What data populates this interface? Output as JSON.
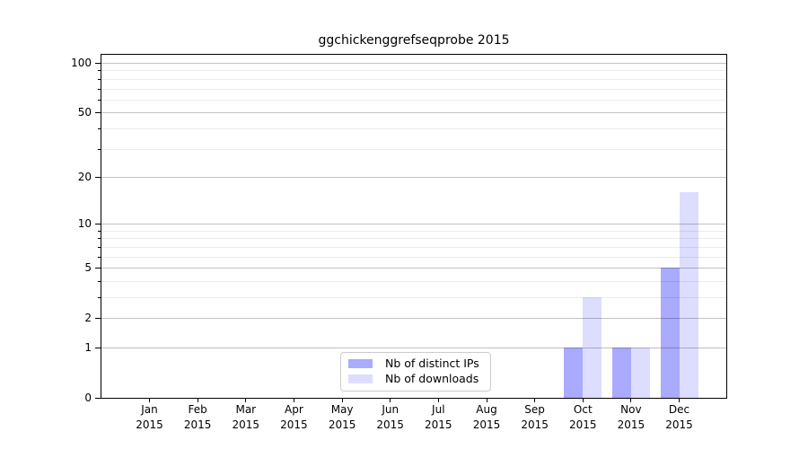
{
  "chart_data": {
    "type": "bar",
    "title": "ggchickenggrefseqprobe 2015",
    "year": "2015",
    "categories": [
      "Jan",
      "Feb",
      "Mar",
      "Apr",
      "May",
      "Jun",
      "Jul",
      "Aug",
      "Sep",
      "Oct",
      "Nov",
      "Dec"
    ],
    "series": [
      {
        "name": "Nb of distinct IPs",
        "color": "#aaaaff",
        "values": [
          0,
          0,
          0,
          0,
          0,
          0,
          0,
          0,
          0,
          1,
          1,
          5
        ]
      },
      {
        "name": "Nb of downloads",
        "color": "#ddddff",
        "values": [
          0,
          0,
          0,
          0,
          0,
          0,
          0,
          0,
          0,
          3,
          1,
          16
        ]
      }
    ],
    "xlabel": "",
    "ylabel": "",
    "ylim": [
      0,
      100
    ],
    "y_ticks": [
      0,
      1,
      2,
      5,
      10,
      20,
      50,
      100
    ],
    "y_minor_ticks": [
      3,
      4,
      6,
      7,
      8,
      9,
      30,
      40,
      60,
      70,
      80,
      90
    ],
    "scale": "log1p",
    "grid": true,
    "legend_position": "lower center"
  }
}
